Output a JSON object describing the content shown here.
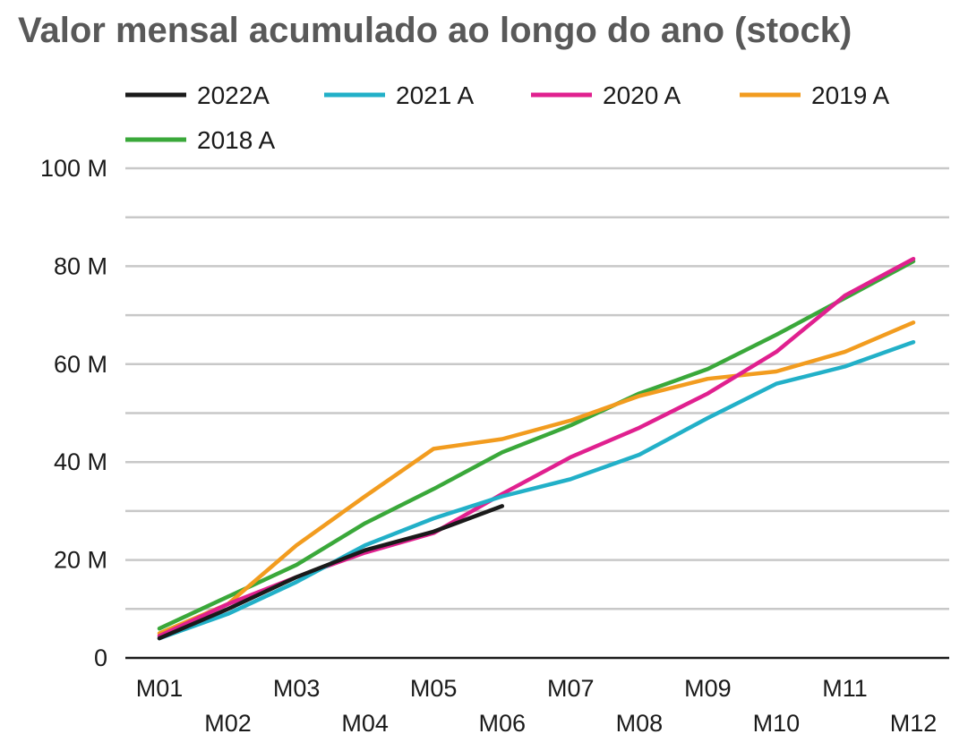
{
  "chart_data": {
    "type": "line",
    "title": "Valor mensal acumulado ao longo do ano (stock)",
    "xlabel": "",
    "ylabel": "",
    "categories": [
      "M01",
      "M02",
      "M03",
      "M04",
      "M05",
      "M06",
      "M07",
      "M08",
      "M09",
      "M10",
      "M11",
      "M12"
    ],
    "ylim": [
      0,
      100
    ],
    "y_ticks": [
      {
        "value": 0,
        "label": "0"
      },
      {
        "value": 20,
        "label": "20 M"
      },
      {
        "value": 40,
        "label": "40 M"
      },
      {
        "value": 60,
        "label": "60 M"
      },
      {
        "value": 80,
        "label": "80 M"
      },
      {
        "value": 100,
        "label": "100 M"
      }
    ],
    "gridline_values": [
      10,
      20,
      30,
      40,
      50,
      60,
      70,
      80,
      90,
      100
    ],
    "grid": true,
    "legend_position": "top",
    "series": [
      {
        "name": "2022A",
        "color": "#1a1a1a",
        "values": [
          4.0,
          10.0,
          16.5,
          22.0,
          25.8,
          31.0,
          null,
          null,
          null,
          null,
          null,
          null
        ]
      },
      {
        "name": "2021 A",
        "color": "#22b0c8",
        "values": [
          4.0,
          9.0,
          15.5,
          23.0,
          28.5,
          33.0,
          36.5,
          41.5,
          49.0,
          56.0,
          59.5,
          64.5
        ]
      },
      {
        "name": "2020 A",
        "color": "#e0208f",
        "values": [
          4.5,
          11.0,
          16.5,
          21.5,
          25.5,
          33.5,
          41.0,
          47.0,
          54.0,
          62.5,
          74.0,
          81.5
        ]
      },
      {
        "name": "2019 A",
        "color": "#f29c1f",
        "values": [
          5.0,
          11.0,
          23.0,
          33.0,
          42.7,
          44.7,
          48.5,
          53.5,
          57.0,
          58.5,
          62.5,
          68.5
        ]
      },
      {
        "name": "2018 A",
        "color": "#3aa83a",
        "values": [
          6.0,
          12.5,
          19.0,
          27.5,
          34.5,
          42.0,
          47.5,
          54.0,
          59.0,
          66.0,
          73.5,
          81.0
        ]
      }
    ]
  }
}
